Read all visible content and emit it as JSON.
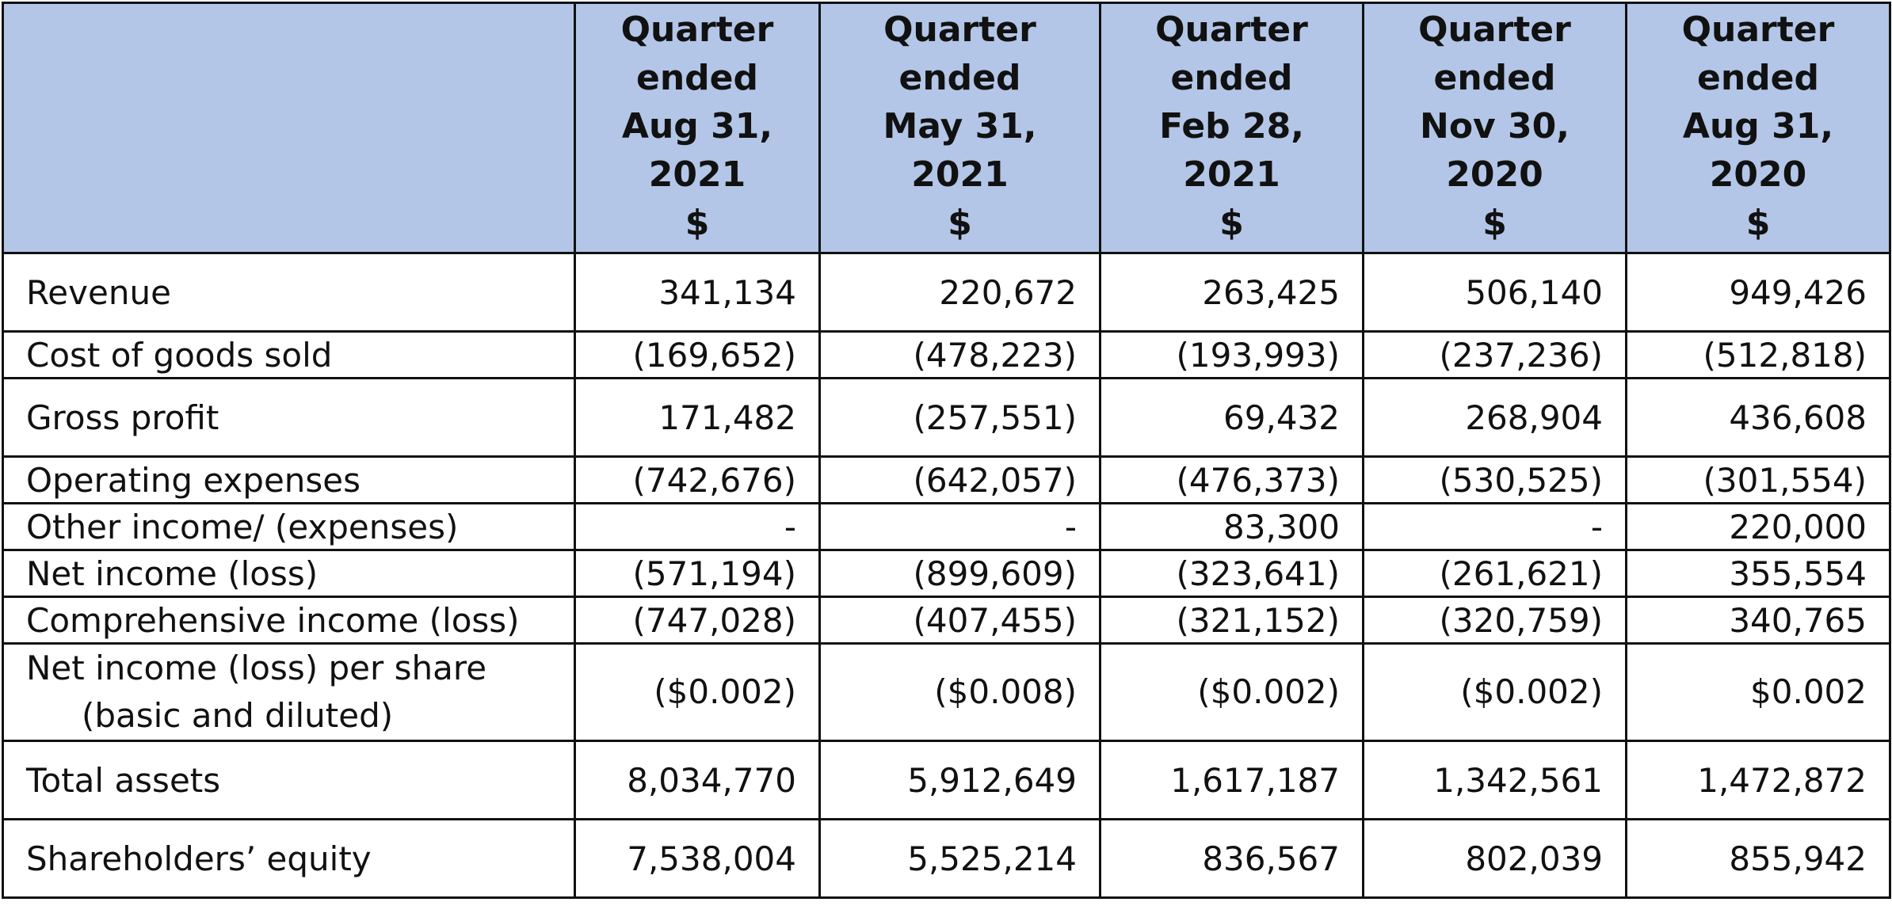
{
  "header": {
    "columns": [
      {
        "lines": [
          "Quarter",
          "ended",
          "Aug 31,",
          "2021",
          "$"
        ]
      },
      {
        "lines": [
          "Quarter",
          "ended",
          "May 31,",
          "2021",
          "$"
        ]
      },
      {
        "lines": [
          "Quarter",
          "ended",
          "Feb 28,",
          "2021",
          "$"
        ]
      },
      {
        "lines": [
          "Quarter",
          "ended",
          "Nov 30,",
          "2020",
          "$"
        ]
      },
      {
        "lines": [
          "Quarter",
          "ended",
          "Aug 31,",
          "2020",
          "$"
        ]
      }
    ]
  },
  "rows": [
    {
      "label": "Revenue",
      "values": [
        "341,134",
        "220,672",
        "263,425",
        "506,140",
        "949,426"
      ]
    },
    {
      "label": "Cost of goods sold",
      "values": [
        "(169,652)",
        "(478,223)",
        "(193,993)",
        "(237,236)",
        "(512,818)"
      ]
    },
    {
      "label": "Gross profit",
      "values": [
        "171,482",
        "(257,551)",
        "69,432",
        "268,904",
        "436,608"
      ]
    },
    {
      "label": "Operating expenses",
      "values": [
        "(742,676)",
        "(642,057)",
        "(476,373)",
        "(530,525)",
        "(301,554)"
      ]
    },
    {
      "label": "Other income/ (expenses)",
      "values": [
        "-",
        "-",
        "83,300",
        "-",
        "220,000"
      ]
    },
    {
      "label": "Net income (loss)",
      "values": [
        "(571,194)",
        "(899,609)",
        "(323,641)",
        "(261,621)",
        "355,554"
      ]
    },
    {
      "label": "Comprehensive income (loss)",
      "values": [
        "(747,028)",
        "(407,455)",
        "(321,152)",
        "(320,759)",
        "340,765"
      ]
    },
    {
      "label": "Net income (loss) per share",
      "sublabel": "(basic and diluted)",
      "values": [
        "($0.002)",
        "($0.008)",
        "($0.002)",
        "($0.002)",
        "$0.002"
      ]
    },
    {
      "label": "Total assets",
      "values": [
        "8,034,770",
        "5,912,649",
        "1,617,187",
        "1,342,561",
        "1,472,872"
      ]
    },
    {
      "label": "Shareholders’ equity",
      "values": [
        "7,538,004",
        "5,525,214",
        "836,567",
        "802,039",
        "855,942"
      ]
    }
  ],
  "colors": {
    "header_bg": "#b3c6e7",
    "border": "#111111"
  }
}
